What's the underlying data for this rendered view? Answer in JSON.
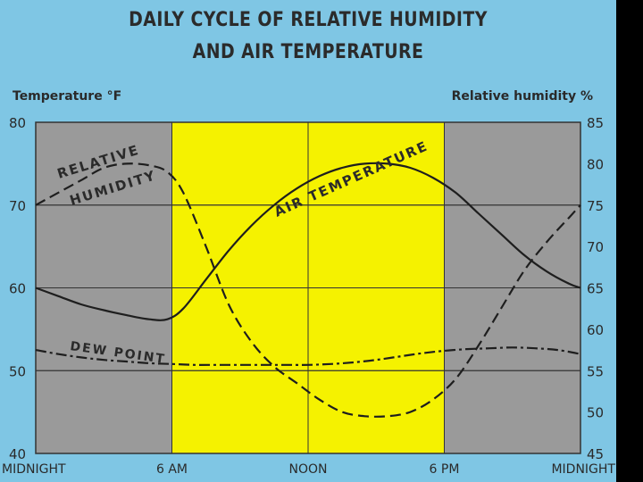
{
  "title_lines": [
    "DAILY CYCLE OF RELATIVE HUMIDITY",
    "AND AIR TEMPERATURE"
  ],
  "chart_data": {
    "type": "line",
    "title": "DAILY CYCLE OF RELATIVE HUMIDITY AND AIR TEMPERATURE",
    "ylabel_left": "Temperature °F",
    "ylabel_right": "Relative humidity %",
    "x_ticks": [
      "MIDNIGHT",
      "6 AM",
      "NOON",
      "6 PM",
      "MIDNIGHT"
    ],
    "x_tick_hours": [
      0,
      6,
      12,
      18,
      24
    ],
    "xlim": [
      0,
      24
    ],
    "ylim_left": [
      40,
      80
    ],
    "ylim_right": [
      45,
      85
    ],
    "y_ticks_left": [
      40,
      50,
      60,
      70,
      80
    ],
    "y_ticks_right": [
      45,
      50,
      55,
      60,
      65,
      70,
      75,
      80,
      85
    ],
    "grid": true,
    "shaded_bands": [
      {
        "from": 0,
        "to": 6,
        "color": "#9a9a9a"
      },
      {
        "from": 6,
        "to": 18,
        "color": "#f5f200"
      },
      {
        "from": 18,
        "to": 24,
        "color": "#9a9a9a"
      }
    ],
    "series": [
      {
        "name": "AIR TEMPERATURE",
        "axis": "left",
        "style": "solid",
        "label_lines": [
          "AIR TEMPERATURE"
        ],
        "x": [
          0,
          1,
          2,
          3,
          4,
          5,
          5.8,
          6.5,
          7.5,
          8.5,
          9.5,
          10.5,
          11.5,
          12.5,
          13.5,
          14.5,
          15.5,
          16.5,
          17.5,
          18.5,
          19.5,
          20.5,
          21.5,
          22.5,
          23.5,
          24
        ],
        "y": [
          60.0,
          59.0,
          58.0,
          57.3,
          56.7,
          56.2,
          56.2,
          57.5,
          61.0,
          64.5,
          67.5,
          70.0,
          72.0,
          73.5,
          74.5,
          75.0,
          75.0,
          74.5,
          73.3,
          71.5,
          69.0,
          66.5,
          64.0,
          62.0,
          60.5,
          60.0
        ]
      },
      {
        "name": "RELATIVE HUMIDITY",
        "axis": "right",
        "style": "dashed",
        "label_lines": [
          "RELATIVE",
          "HUMIDITY"
        ],
        "x": [
          0,
          1,
          2,
          3,
          4,
          5,
          5.8,
          6.5,
          7.5,
          8.5,
          9.5,
          10.5,
          11.5,
          12.5,
          13.5,
          14.5,
          15.5,
          16.5,
          17.5,
          18.5,
          19.5,
          20.5,
          21.5,
          22.5,
          23.5,
          24
        ],
        "y": [
          75.0,
          76.5,
          78.0,
          79.5,
          80.0,
          79.8,
          79.0,
          76.5,
          70.0,
          63.0,
          58.5,
          55.5,
          53.5,
          51.5,
          50.0,
          49.5,
          49.5,
          50.0,
          51.5,
          54.0,
          58.0,
          62.5,
          67.0,
          70.5,
          73.5,
          75.0
        ]
      },
      {
        "name": "DEW POINT",
        "axis": "left",
        "style": "dash-dot",
        "label_lines": [
          "DEW POINT"
        ],
        "x": [
          0,
          1,
          2,
          3,
          4,
          5,
          6,
          7,
          8,
          9,
          10,
          11,
          12,
          13,
          14,
          15,
          16,
          17,
          18,
          19,
          20,
          21,
          22,
          23,
          24
        ],
        "y": [
          52.5,
          52.0,
          51.6,
          51.3,
          51.1,
          50.9,
          50.8,
          50.7,
          50.7,
          50.7,
          50.7,
          50.7,
          50.7,
          50.8,
          51.0,
          51.3,
          51.7,
          52.1,
          52.4,
          52.6,
          52.7,
          52.8,
          52.7,
          52.5,
          52.0
        ]
      }
    ]
  },
  "colors": {
    "background": "#7fc6e4",
    "night_band": "#9a9a9a",
    "day_band": "#f5f200",
    "ink": "#2a2a2a"
  }
}
